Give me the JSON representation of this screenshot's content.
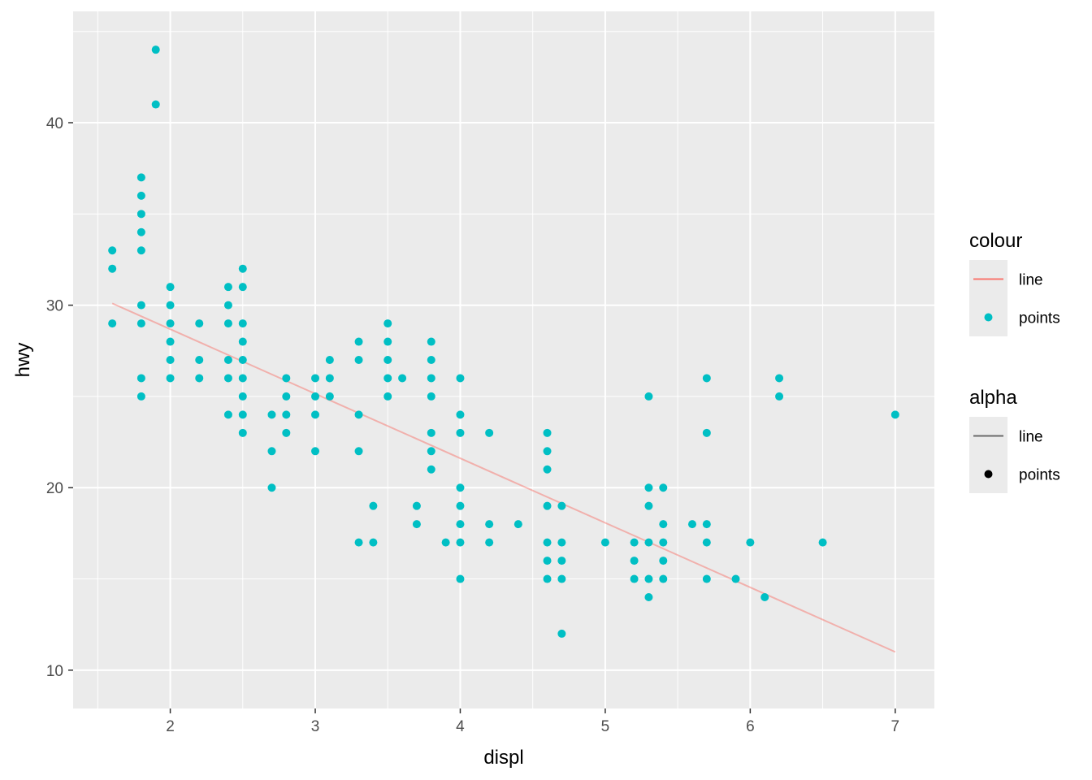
{
  "colors": {
    "panel_bg": "#EBEBEB",
    "grid_major": "#FFFFFF",
    "points": "#00BFC4",
    "line": "#F8766D",
    "tick_text": "#4D4D4D",
    "tick_mark": "#333333",
    "alpha_key": "#000000"
  },
  "chart_data": {
    "type": "scatter",
    "xlabel": "displ",
    "ylabel": "hwy",
    "xlim": [
      1.33,
      7.27
    ],
    "ylim": [
      7.9,
      46.1
    ],
    "x_ticks": [
      2,
      3,
      4,
      5,
      6,
      7
    ],
    "x_tick_labels": [
      "2",
      "3",
      "4",
      "5",
      "6",
      "7"
    ],
    "y_ticks": [
      10,
      20,
      30,
      40
    ],
    "y_tick_labels": [
      "10",
      "20",
      "30",
      "40"
    ],
    "grid": true,
    "legend_position": "right",
    "legends": [
      {
        "title": "colour",
        "entries": [
          {
            "label": "line",
            "key": "line",
            "color": "#F8766D"
          },
          {
            "label": "points",
            "key": "point",
            "color": "#00BFC4"
          }
        ]
      },
      {
        "title": "alpha",
        "entries": [
          {
            "label": "line",
            "key": "line",
            "color": "#000000"
          },
          {
            "label": "points",
            "key": "point",
            "color": "#000000"
          }
        ]
      }
    ],
    "series": [
      {
        "name": "points",
        "kind": "scatter",
        "color": "#00BFC4",
        "points": [
          [
            1.6,
            33
          ],
          [
            1.6,
            32
          ],
          [
            1.6,
            29
          ],
          [
            1.8,
            37
          ],
          [
            1.8,
            36
          ],
          [
            1.8,
            35
          ],
          [
            1.8,
            34
          ],
          [
            1.8,
            33
          ],
          [
            1.8,
            30
          ],
          [
            1.8,
            29
          ],
          [
            1.8,
            26
          ],
          [
            1.8,
            25
          ],
          [
            1.9,
            44
          ],
          [
            1.9,
            41
          ],
          [
            2.0,
            31
          ],
          [
            2.0,
            30
          ],
          [
            2.0,
            29
          ],
          [
            2.0,
            28
          ],
          [
            2.0,
            27
          ],
          [
            2.0,
            26
          ],
          [
            2.2,
            29
          ],
          [
            2.2,
            27
          ],
          [
            2.2,
            26
          ],
          [
            2.4,
            31
          ],
          [
            2.4,
            30
          ],
          [
            2.4,
            29
          ],
          [
            2.4,
            27
          ],
          [
            2.4,
            26
          ],
          [
            2.4,
            24
          ],
          [
            2.5,
            32
          ],
          [
            2.5,
            31
          ],
          [
            2.5,
            29
          ],
          [
            2.5,
            28
          ],
          [
            2.5,
            27
          ],
          [
            2.5,
            26
          ],
          [
            2.5,
            25
          ],
          [
            2.5,
            24
          ],
          [
            2.5,
            23
          ],
          [
            2.7,
            24
          ],
          [
            2.7,
            22
          ],
          [
            2.7,
            20
          ],
          [
            2.8,
            26
          ],
          [
            2.8,
            25
          ],
          [
            2.8,
            24
          ],
          [
            2.8,
            23
          ],
          [
            3.0,
            26
          ],
          [
            3.0,
            25
          ],
          [
            3.0,
            24
          ],
          [
            3.0,
            22
          ],
          [
            3.1,
            27
          ],
          [
            3.1,
            26
          ],
          [
            3.1,
            25
          ],
          [
            3.3,
            28
          ],
          [
            3.3,
            27
          ],
          [
            3.3,
            24
          ],
          [
            3.3,
            22
          ],
          [
            3.3,
            17
          ],
          [
            3.4,
            19
          ],
          [
            3.4,
            17
          ],
          [
            3.5,
            29
          ],
          [
            3.5,
            28
          ],
          [
            3.5,
            27
          ],
          [
            3.5,
            26
          ],
          [
            3.5,
            25
          ],
          [
            3.6,
            26
          ],
          [
            3.7,
            19
          ],
          [
            3.7,
            18
          ],
          [
            3.8,
            28
          ],
          [
            3.8,
            27
          ],
          [
            3.8,
            26
          ],
          [
            3.8,
            25
          ],
          [
            3.8,
            23
          ],
          [
            3.8,
            22
          ],
          [
            3.8,
            21
          ],
          [
            3.9,
            17
          ],
          [
            4.0,
            26
          ],
          [
            4.0,
            24
          ],
          [
            4.0,
            23
          ],
          [
            4.0,
            20
          ],
          [
            4.0,
            19
          ],
          [
            4.0,
            18
          ],
          [
            4.0,
            17
          ],
          [
            4.0,
            15
          ],
          [
            4.2,
            23
          ],
          [
            4.2,
            18
          ],
          [
            4.2,
            17
          ],
          [
            4.4,
            18
          ],
          [
            4.6,
            23
          ],
          [
            4.6,
            22
          ],
          [
            4.6,
            21
          ],
          [
            4.6,
            19
          ],
          [
            4.6,
            17
          ],
          [
            4.6,
            16
          ],
          [
            4.6,
            15
          ],
          [
            4.7,
            19
          ],
          [
            4.7,
            17
          ],
          [
            4.7,
            16
          ],
          [
            4.7,
            15
          ],
          [
            4.7,
            12
          ],
          [
            5.0,
            17
          ],
          [
            5.2,
            17
          ],
          [
            5.2,
            16
          ],
          [
            5.2,
            15
          ],
          [
            5.3,
            25
          ],
          [
            5.3,
            20
          ],
          [
            5.3,
            19
          ],
          [
            5.3,
            17
          ],
          [
            5.3,
            15
          ],
          [
            5.3,
            14
          ],
          [
            5.4,
            20
          ],
          [
            5.4,
            18
          ],
          [
            5.4,
            17
          ],
          [
            5.4,
            16
          ],
          [
            5.4,
            15
          ],
          [
            5.6,
            18
          ],
          [
            5.7,
            26
          ],
          [
            5.7,
            23
          ],
          [
            5.7,
            18
          ],
          [
            5.7,
            17
          ],
          [
            5.7,
            15
          ],
          [
            5.9,
            15
          ],
          [
            6.0,
            17
          ],
          [
            6.1,
            14
          ],
          [
            6.2,
            26
          ],
          [
            6.2,
            25
          ],
          [
            6.5,
            17
          ],
          [
            7.0,
            24
          ]
        ]
      },
      {
        "name": "line",
        "kind": "line",
        "color": "#F8766D",
        "opacity": 0.5,
        "x": [
          1.6,
          7.0
        ],
        "y": [
          30.1,
          11.0
        ]
      }
    ]
  }
}
